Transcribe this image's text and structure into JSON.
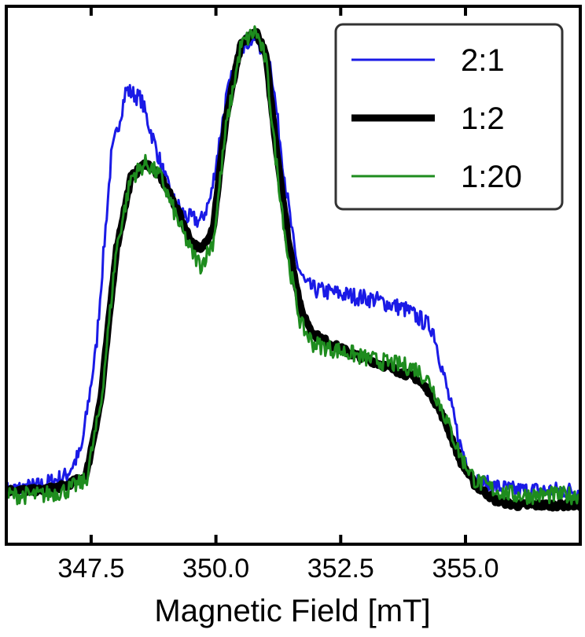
{
  "chart_data": {
    "type": "line",
    "title": "",
    "xlabel": "Magnetic Field [mT]",
    "ylabel": "",
    "xlim": [
      345.8,
      357.3
    ],
    "ylim": [
      -0.05,
      1.05
    ],
    "xticks": [
      347.5,
      350.0,
      352.5,
      355.0
    ],
    "xtick_labels": [
      "347.5",
      "350.0",
      "352.5",
      "355.0"
    ],
    "y_ticks_labeled": false,
    "grid": false,
    "legend_position": "top-right",
    "series": [
      {
        "name": "2:1",
        "color": "#1a1ae6",
        "line_width": 3,
        "x": [
          345.8,
          346.5,
          347.0,
          347.3,
          347.6,
          347.9,
          348.2,
          348.5,
          348.8,
          349.1,
          349.4,
          349.7,
          349.9,
          350.2,
          350.5,
          350.8,
          351.1,
          351.35,
          351.6,
          351.8,
          352.0,
          352.3,
          352.6,
          352.9,
          353.2,
          353.5,
          353.8,
          354.1,
          354.35,
          354.6,
          354.9,
          355.2,
          355.5,
          356.0,
          356.5,
          357.3
        ],
        "y": [
          0.06,
          0.07,
          0.09,
          0.14,
          0.35,
          0.74,
          0.88,
          0.86,
          0.76,
          0.66,
          0.62,
          0.61,
          0.66,
          0.86,
          0.97,
          0.985,
          0.93,
          0.72,
          0.53,
          0.48,
          0.47,
          0.465,
          0.46,
          0.455,
          0.45,
          0.44,
          0.43,
          0.41,
          0.39,
          0.28,
          0.15,
          0.08,
          0.07,
          0.06,
          0.06,
          0.06
        ]
      },
      {
        "name": "1:2",
        "color": "#000000",
        "line_width": 9,
        "x": [
          345.8,
          346.5,
          347.0,
          347.4,
          347.7,
          348.0,
          348.3,
          348.6,
          348.9,
          349.2,
          349.5,
          349.7,
          349.95,
          350.2,
          350.5,
          350.8,
          351.0,
          351.2,
          351.45,
          351.7,
          351.95,
          352.3,
          352.7,
          353.0,
          353.5,
          354.0,
          354.3,
          354.6,
          354.9,
          355.2,
          355.6,
          356.0,
          356.5,
          357.3
        ],
        "y": [
          0.06,
          0.06,
          0.07,
          0.09,
          0.25,
          0.55,
          0.7,
          0.73,
          0.7,
          0.64,
          0.57,
          0.55,
          0.6,
          0.82,
          0.97,
          1.0,
          0.95,
          0.77,
          0.57,
          0.43,
          0.38,
          0.36,
          0.34,
          0.33,
          0.31,
          0.29,
          0.26,
          0.2,
          0.12,
          0.07,
          0.04,
          0.03,
          0.03,
          0.03
        ]
      },
      {
        "name": "1:20",
        "color": "#1e8c1e",
        "line_width": 3,
        "x": [
          345.8,
          346.5,
          347.0,
          347.4,
          347.7,
          348.0,
          348.3,
          348.6,
          348.9,
          349.2,
          349.5,
          349.7,
          349.95,
          350.2,
          350.5,
          350.8,
          351.0,
          351.2,
          351.45,
          351.7,
          351.95,
          352.3,
          352.7,
          353.0,
          353.5,
          354.0,
          354.3,
          354.6,
          354.9,
          355.2,
          355.6,
          356.0,
          356.5,
          357.3
        ],
        "y": [
          0.05,
          0.05,
          0.06,
          0.08,
          0.24,
          0.55,
          0.7,
          0.73,
          0.7,
          0.62,
          0.55,
          0.52,
          0.57,
          0.8,
          0.97,
          1.0,
          0.94,
          0.74,
          0.53,
          0.4,
          0.36,
          0.35,
          0.34,
          0.33,
          0.32,
          0.31,
          0.28,
          0.21,
          0.13,
          0.08,
          0.06,
          0.05,
          0.05,
          0.05
        ]
      }
    ]
  }
}
